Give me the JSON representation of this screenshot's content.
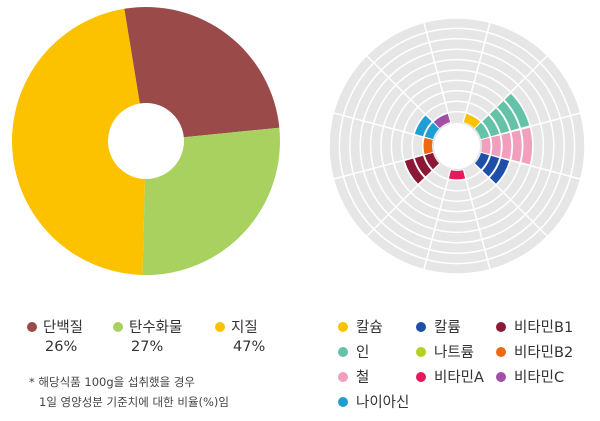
{
  "chart_data": [
    {
      "type": "pie",
      "variant": "donut",
      "categories": [
        "단백질",
        "탄수화물",
        "지질"
      ],
      "values": [
        26,
        27,
        47
      ],
      "value_labels": [
        "26%",
        "27%",
        "47%"
      ],
      "colors": [
        "#9b4a4a",
        "#a9d15f",
        "#fcc200"
      ]
    },
    {
      "type": "bar",
      "variant": "polar",
      "scale_max": 10,
      "categories": [
        "칼슘",
        "인",
        "철",
        "칼륨",
        "나트륨",
        "비타민A",
        "비타민B1",
        "비타민B2",
        "비타민C",
        "나이아신"
      ],
      "values": [
        1,
        5,
        5,
        3,
        0,
        1,
        3,
        1,
        1,
        2
      ],
      "colors": [
        "#fcc200",
        "#63c2a8",
        "#f29fbe",
        "#1e4fa8",
        "#b7cf1f",
        "#e6195a",
        "#8b1836",
        "#ed6a13",
        "#a24fa6",
        "#1f9ed4"
      ],
      "grid": true
    }
  ],
  "legend_left": [
    {
      "name": "단백질",
      "value": "26%",
      "color": "#9b4a4a"
    },
    {
      "name": "탄수화물",
      "value": "27%",
      "color": "#a9d15f"
    },
    {
      "name": "지질",
      "value": "47%",
      "color": "#fcc200"
    }
  ],
  "note": {
    "line1": "* 해당식품 100g을 섭취했을 경우",
    "line2": "1일 영양성분 기준치에 대한 비율(%)임"
  },
  "legend_right": [
    {
      "name": "칼슘",
      "color": "#fcc200"
    },
    {
      "name": "칼륨",
      "color": "#1e4fa8"
    },
    {
      "name": "비타민B1",
      "color": "#8b1836"
    },
    {
      "name": "인",
      "color": "#63c2a8"
    },
    {
      "name": "나트륨",
      "color": "#b7cf1f"
    },
    {
      "name": "비타민B2",
      "color": "#ed6a13"
    },
    {
      "name": "철",
      "color": "#f29fbe"
    },
    {
      "name": "비타민A",
      "color": "#e6195a"
    },
    {
      "name": "비타민C",
      "color": "#a24fa6"
    },
    {
      "name": "나이아신",
      "color": "#1f9ed4"
    }
  ]
}
